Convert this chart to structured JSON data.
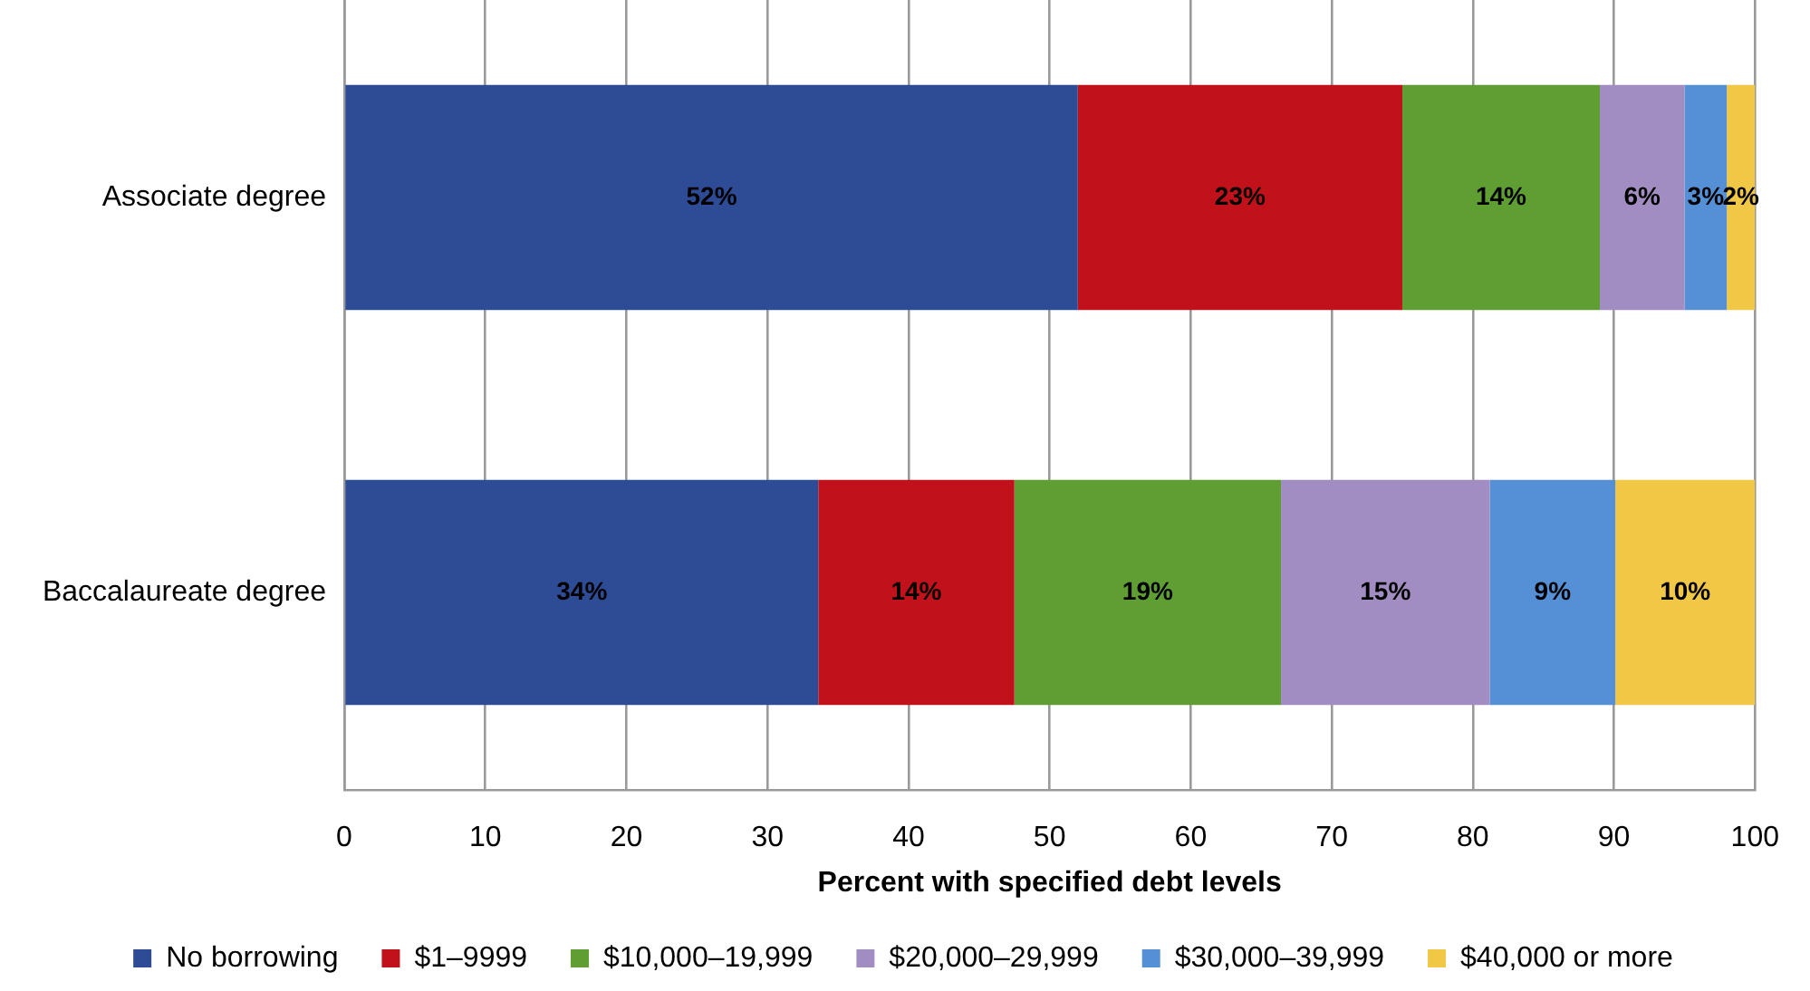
{
  "chart_data": {
    "type": "bar",
    "orientation": "horizontal",
    "stacked": true,
    "categories": [
      "Associate degree",
      "Baccalaureate degree"
    ],
    "series": [
      {
        "name": "No borrowing",
        "color": "#2e4b96",
        "values": [
          52,
          33.6
        ],
        "value_labels": [
          "52%",
          "34%"
        ]
      },
      {
        "name": "$1–9999",
        "color": "#c1121c",
        "values": [
          23,
          13.9
        ],
        "value_labels": [
          "23%",
          "14%"
        ]
      },
      {
        "name": "$10,000–19,999",
        "color": "#5e9e33",
        "values": [
          14,
          18.9
        ],
        "value_labels": [
          "14%",
          "19%"
        ]
      },
      {
        "name": "$20,000–29,999",
        "color": "#a28dc2",
        "values": [
          6,
          14.8
        ],
        "value_labels": [
          "6%",
          "15%"
        ]
      },
      {
        "name": "$30,000–39,999",
        "color": "#5590d6",
        "values": [
          3,
          8.9
        ],
        "value_labels": [
          "3%",
          "9%"
        ]
      },
      {
        "name": "$40,000 or more",
        "color": "#f0c846",
        "values": [
          2,
          9.9
        ],
        "value_labels": [
          "2%",
          "10%"
        ]
      }
    ],
    "xlim": [
      0,
      100
    ],
    "xticks": [
      0,
      10,
      20,
      30,
      40,
      50,
      60,
      70,
      80,
      90,
      100
    ],
    "xlabel": "Percent with specified debt levels",
    "grid": "x",
    "legend": "bottom"
  }
}
